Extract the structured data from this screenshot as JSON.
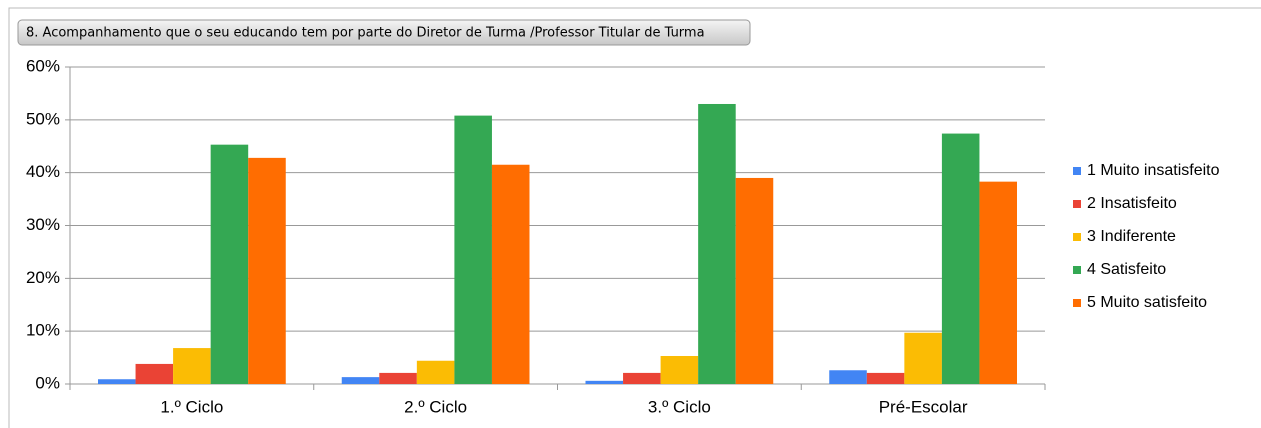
{
  "chart_data": {
    "type": "bar",
    "title": "8. Acompanhamento que o seu educando tem por parte do Diretor de Turma /Professor Titular de Turma",
    "categories": [
      "1.º Ciclo",
      "2.º Ciclo",
      "3.º Ciclo",
      "Pré-Escolar"
    ],
    "series": [
      {
        "name": "1 Muito insatisfeito",
        "color": "#4285f4",
        "values": [
          0.9,
          1.3,
          0.6,
          2.6
        ]
      },
      {
        "name": "2 Insatisfeito",
        "color": "#ea4335",
        "values": [
          3.8,
          2.1,
          2.1,
          2.1
        ]
      },
      {
        "name": "3 Indiferente",
        "color": "#fbbc04",
        "values": [
          6.8,
          4.4,
          5.3,
          9.7
        ]
      },
      {
        "name": "4 Satisfeito",
        "color": "#34a853",
        "values": [
          45.3,
          50.8,
          53.0,
          47.4
        ]
      },
      {
        "name": "5 Muito satisfeito",
        "color": "#ff6d01",
        "values": [
          42.8,
          41.5,
          39.0,
          38.3
        ]
      }
    ],
    "ylim": [
      0,
      60
    ],
    "yticks": [
      {
        "value": 0,
        "label": "0%"
      },
      {
        "value": 10,
        "label": "10%"
      },
      {
        "value": 20,
        "label": "20%"
      },
      {
        "value": 30,
        "label": "30%"
      },
      {
        "value": 40,
        "label": "40%"
      },
      {
        "value": 50,
        "label": "50%"
      },
      {
        "value": 60,
        "label": "60%"
      }
    ],
    "grid": true,
    "legend": "right"
  }
}
